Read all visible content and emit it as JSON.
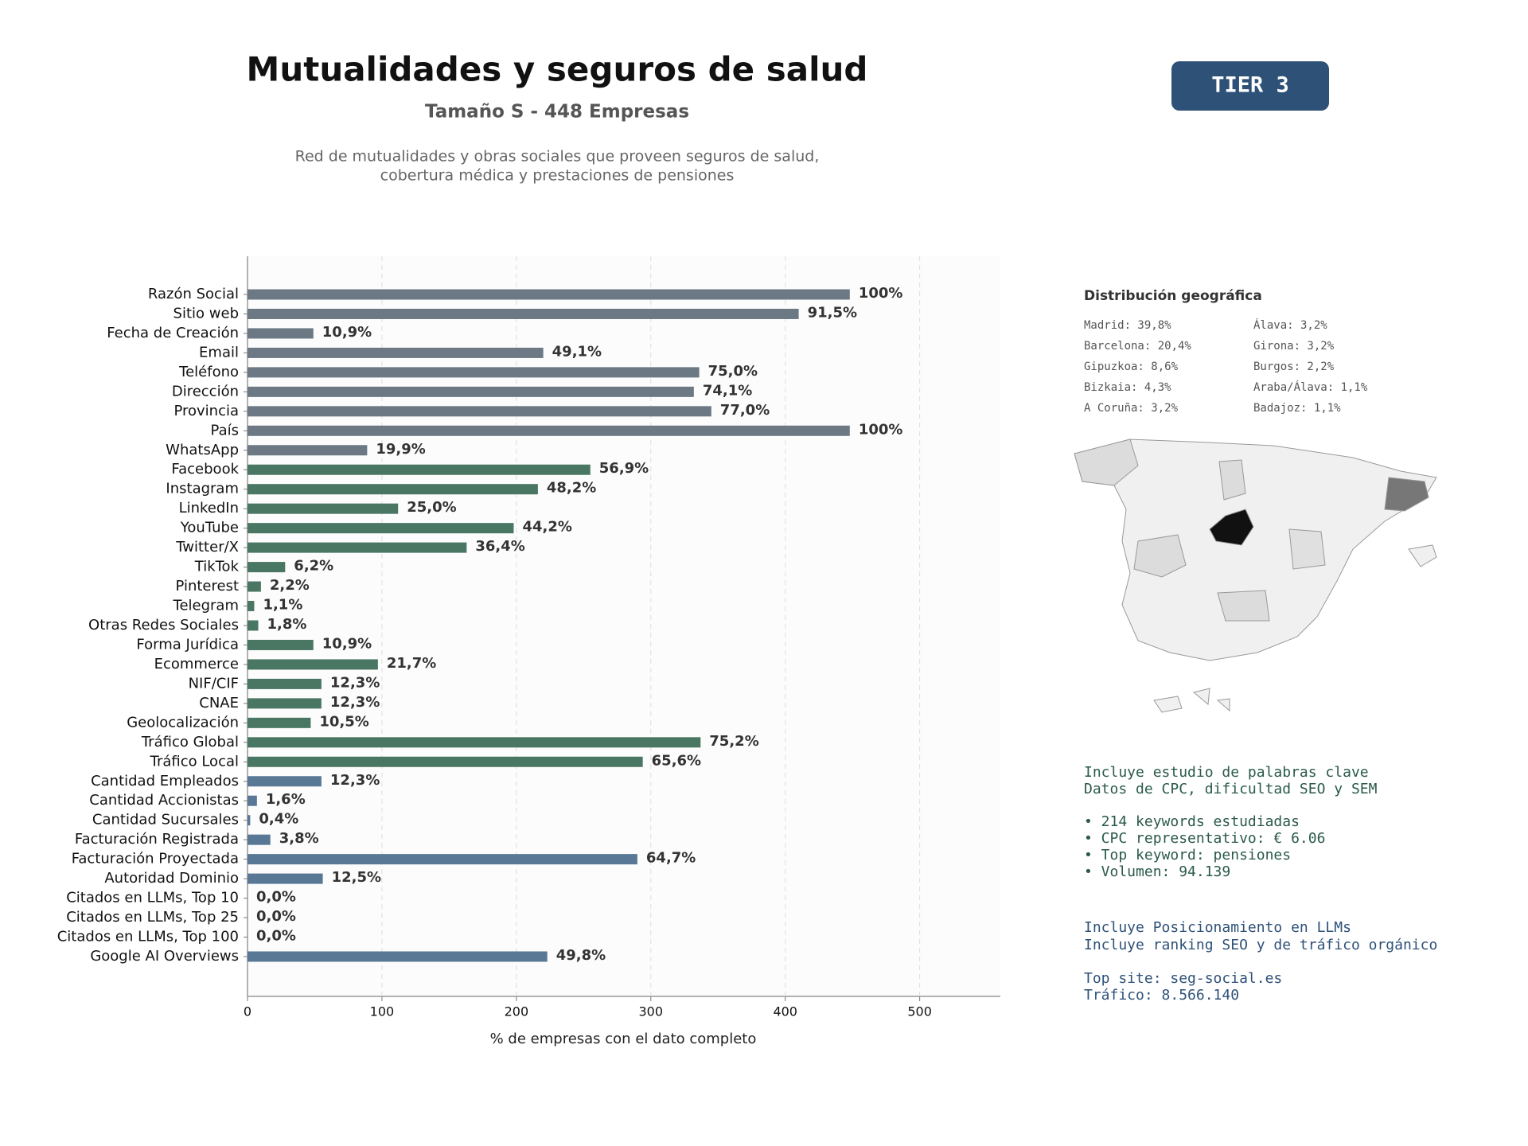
{
  "chart_data": {
    "type": "barh",
    "title": "Mutualidades y seguros de salud",
    "subtitle": "Tamaño S - 448 Empresas",
    "description": [
      "Red de mutualidades y obras sociales que proveen seguros de salud,",
      "cobertura médica y prestaciones de pensiones"
    ],
    "badge": "TIER 3",
    "xlabel": "% de empresas con el dato completo",
    "categories": [
      "Razón Social",
      "Sitio web",
      "Fecha de Creación",
      "Email",
      "Teléfono",
      "Dirección",
      "Provincia",
      "País",
      "WhatsApp",
      "Facebook",
      "Instagram",
      "LinkedIn",
      "YouTube",
      "Twitter/X",
      "TikTok",
      "Pinterest",
      "Telegram",
      "Otras Redes Sociales",
      "Forma Jurídica",
      "Ecommerce",
      "NIF/CIF",
      "CNAE",
      "Geolocalización",
      "Tráfico Global",
      "Tráfico Local",
      "Cantidad Empleados",
      "Cantidad Accionistas",
      "Cantidad Sucursales",
      "Facturación Registrada",
      "Facturación Proyectada",
      "Autoridad Dominio",
      "Citados en LLMs, Top 10",
      "Citados en LLMs, Top 25",
      "Citados en LLMs, Top 100",
      "Google AI Overviews"
    ],
    "values": [
      448,
      410,
      49,
      220,
      336,
      332,
      345,
      448,
      89,
      255,
      216,
      112,
      198,
      163,
      28,
      10,
      5,
      8,
      49,
      97,
      55,
      55,
      47,
      337,
      294,
      55,
      7,
      2,
      17,
      290,
      56,
      0,
      0,
      0,
      223
    ],
    "value_labels": [
      "100%",
      "91,5%",
      "10,9%",
      "49,1%",
      "75,0%",
      "74,1%",
      "77,0%",
      "100%",
      "19,9%",
      "56,9%",
      "48,2%",
      "25,0%",
      "44,2%",
      "36,4%",
      "6,2%",
      "2,2%",
      "1,1%",
      "1,8%",
      "10,9%",
      "21,7%",
      "12,3%",
      "12,3%",
      "10,5%",
      "75,2%",
      "65,6%",
      "12,3%",
      "1,6%",
      "0,4%",
      "3,8%",
      "64,7%",
      "12,5%",
      "0,0%",
      "0,0%",
      "0,0%",
      "49,8%"
    ],
    "colors": [
      "#6c7883",
      "#6c7883",
      "#6c7883",
      "#6c7883",
      "#6c7883",
      "#6c7883",
      "#6c7883",
      "#6c7883",
      "#6c7883",
      "#4a7763",
      "#4a7763",
      "#4a7763",
      "#4a7763",
      "#4a7763",
      "#4a7763",
      "#4a7763",
      "#4a7763",
      "#4a7763",
      "#4a7763",
      "#4a7763",
      "#4a7763",
      "#4a7763",
      "#4a7763",
      "#4a7763",
      "#4a7763",
      "#587895",
      "#587895",
      "#587895",
      "#587895",
      "#587895",
      "#587895",
      "#587895",
      "#587895",
      "#587895",
      "#587895"
    ],
    "xlim": [
      0,
      560
    ],
    "xticks": [
      0,
      100,
      200,
      300,
      400,
      500
    ],
    "grid": true,
    "sidebar": {
      "geo_title": "Distribución geográfica",
      "geo": [
        "Madrid: 39,8%",
        "Barcelona: 20,4%",
        "Gipuzkoa: 8,6%",
        "Bizkaia: 4,3%",
        "A Coruña: 3,2%",
        "Álava: 3,2%",
        "Girona: 3,2%",
        "Burgos: 2,2%",
        "Araba/Álava: 1,1%",
        "Badajoz: 1,1%"
      ],
      "info1": [
        "Incluye estudio de palabras clave",
        "Datos de CPC, dificultad SEO y SEM",
        "• 214 keywords estudiadas",
        "• CPC representativo: € 6.06",
        "• Top keyword: pensiones",
        "• Volumen: 94.139"
      ],
      "info2": [
        "Incluye Posicionamiento en LLMs",
        "Incluye ranking SEO y de tráfico orgánico",
        "Top site: seg-social.es",
        "Tráfico: 8.566.140"
      ]
    }
  }
}
